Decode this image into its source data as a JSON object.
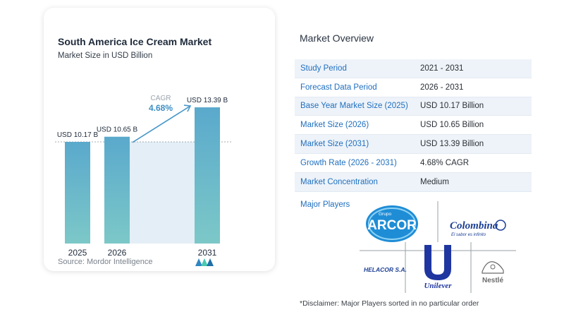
{
  "chart_data": {
    "type": "bar",
    "title": "South America Ice Cream Market",
    "subtitle": "Market Size in USD Billion",
    "categories": [
      "2025",
      "2026",
      "2031"
    ],
    "values": [
      10.17,
      10.65,
      13.39
    ],
    "data_labels": [
      "USD 10.17 B",
      "USD 10.65 B",
      "USD 13.39 B"
    ],
    "annotation": {
      "label": "CAGR",
      "value": "4.68%"
    },
    "reference_line_value": 10.17,
    "grid": false,
    "colors": {
      "bar": "#5aa9cc",
      "bar_gradient_bottom": "#7cc8c8",
      "forecast_shade": "#e3eef6",
      "arrow": "#4a98c9",
      "cagr_label": "#9aa3ad",
      "cagr_value": "#3d8fc4"
    }
  },
  "source": "Source:  Mordor Intelligence",
  "overview": {
    "title": "Market Overview",
    "rows": [
      {
        "label": "Study Period",
        "value": "2021 - 2031"
      },
      {
        "label": "Forecast Data Period",
        "value": "2026 - 2031"
      },
      {
        "label": "Base Year Market Size (2025)",
        "value": "USD 10.17 Billion"
      },
      {
        "label": "Market Size (2026)",
        "value": "USD 10.65 Billion"
      },
      {
        "label": "Market Size (2031)",
        "value": "USD 13.39 Billion"
      },
      {
        "label": "Growth Rate (2026 - 2031)",
        "value": "4.68% CAGR"
      },
      {
        "label": "Market Concentration",
        "value": "Medium"
      }
    ]
  },
  "players": {
    "title": "Major Players",
    "logos": {
      "arcor": {
        "small": "Grupo",
        "name": "ARCOR"
      },
      "colombina": {
        "name": "Colombina",
        "tagline": "El sabor es infinito"
      },
      "helacor": {
        "name": "HELACOR S.A."
      },
      "unilever": {
        "name": "Unilever"
      },
      "nestle": {
        "name": "Nestlé"
      }
    }
  },
  "disclaimer": "*Disclaimer: Major Players sorted in no particular order"
}
